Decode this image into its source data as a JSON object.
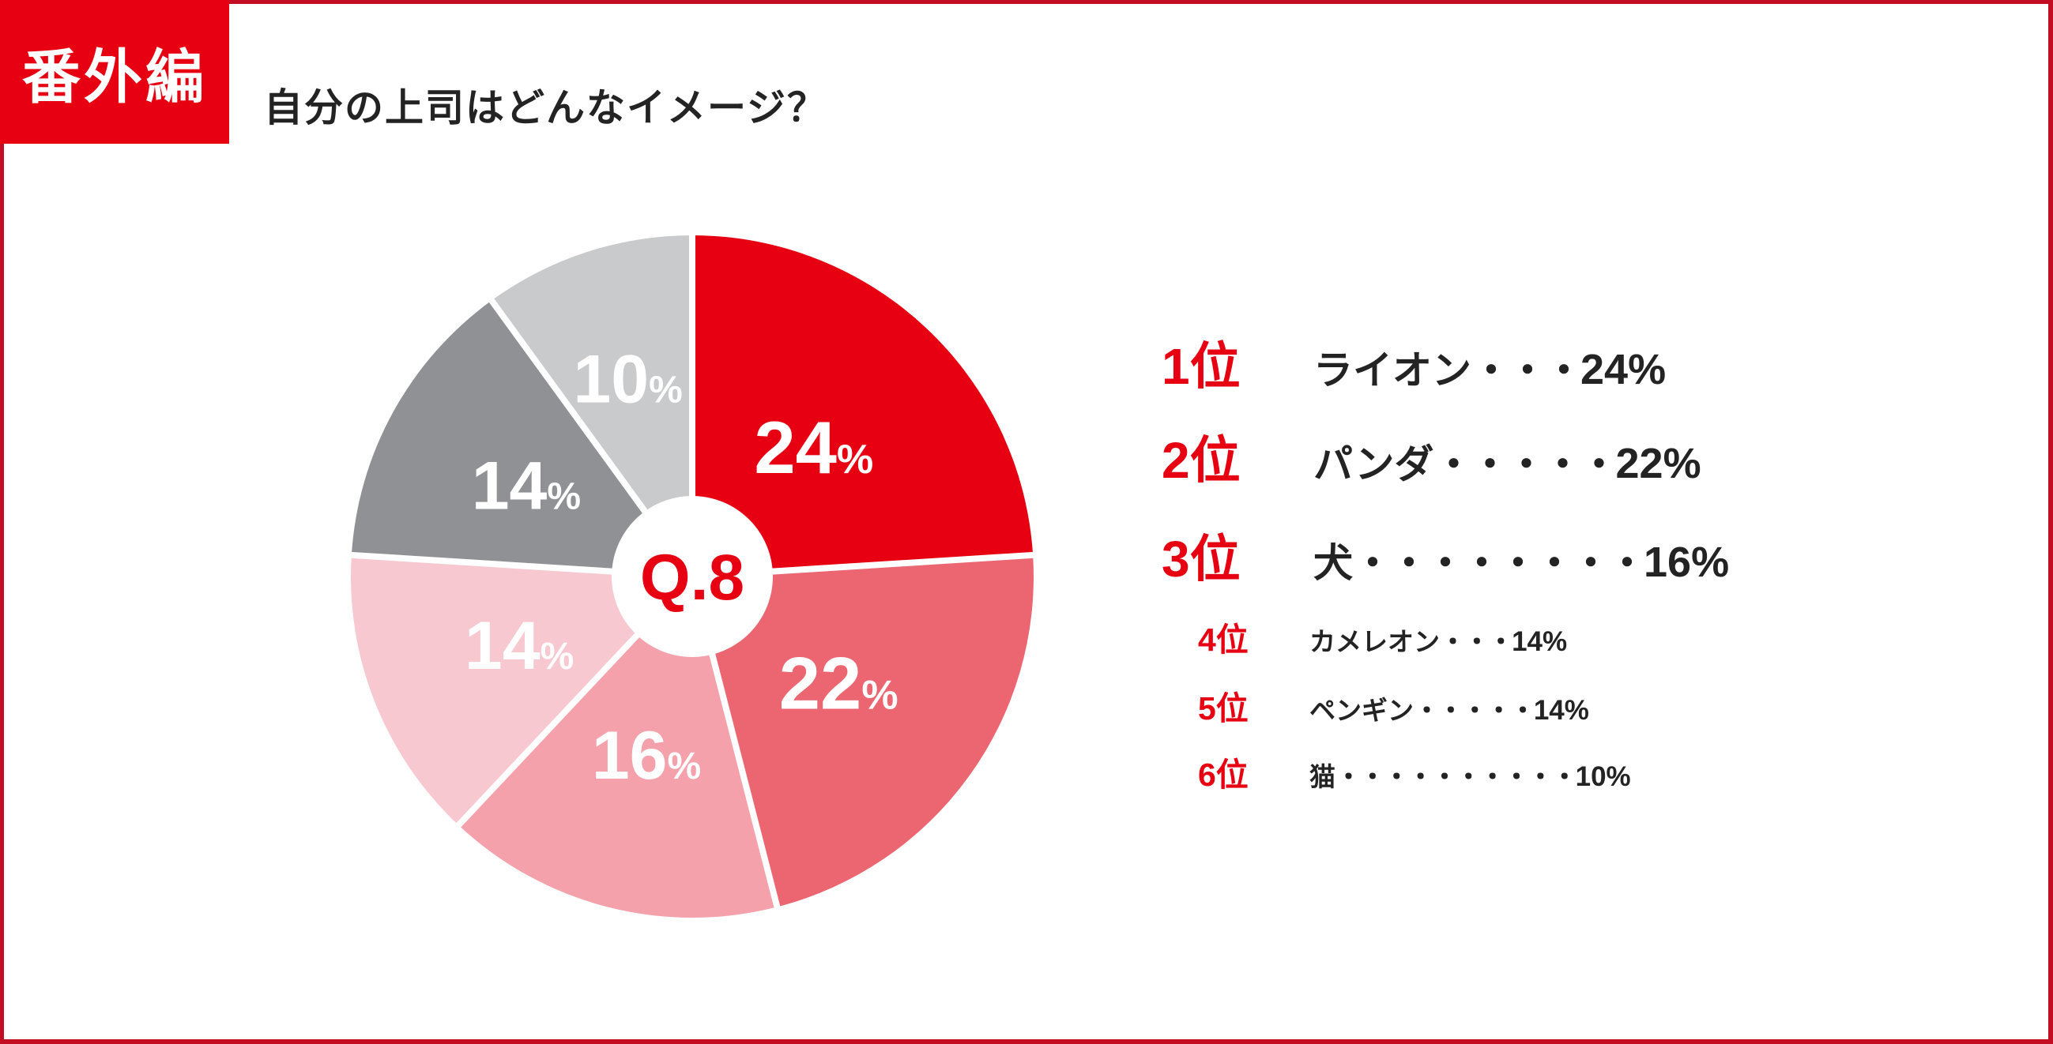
{
  "header": {
    "badge": "番外編",
    "title": "自分の上司はどんなイメージ？"
  },
  "chart_data": {
    "type": "pie",
    "title": "自分の上司はどんなイメージ？",
    "center_label": "Q.8",
    "unit": "%",
    "start_angle_deg": 0,
    "direction": "clockwise",
    "slices": [
      {
        "label": "ライオン",
        "value": 24,
        "display": "24%",
        "color": "#E60012"
      },
      {
        "label": "パンダ",
        "value": 22,
        "display": "22%",
        "color": "#EC6672"
      },
      {
        "label": "犬",
        "value": 16,
        "display": "16%",
        "color": "#F5A1AB"
      },
      {
        "label": "カメレオン",
        "value": 14,
        "display": "14%",
        "color": "#F8C8D1"
      },
      {
        "label": "ペンギン",
        "value": 14,
        "display": "14%",
        "color": "#909194"
      },
      {
        "label": "猫",
        "value": 10,
        "display": "10%",
        "color": "#C9CACB"
      }
    ]
  },
  "ranking": {
    "items": [
      {
        "rank": "1位",
        "name": "ライオン",
        "dots": "・・・",
        "value": "24%",
        "size": "large"
      },
      {
        "rank": "2位",
        "name": "パンダ",
        "dots": "・・・・・",
        "value": "22%",
        "size": "large"
      },
      {
        "rank": "3位",
        "name": "犬",
        "dots": "・・・・・・・・",
        "value": "16%",
        "size": "large"
      },
      {
        "rank": "4位",
        "name": "カメレオン",
        "dots": "・・・",
        "value": "14%",
        "size": "small"
      },
      {
        "rank": "5位",
        "name": "ペンギン",
        "dots": "・・・・・",
        "value": "14%",
        "size": "small"
      },
      {
        "rank": "6位",
        "name": "猫",
        "dots": "・・・・・・・・・・",
        "value": "10%",
        "size": "small"
      }
    ]
  },
  "colors": {
    "accent": "#E60012",
    "frame": "#C30D23",
    "text": "#232323",
    "label_on_slice": "#FFFFFF",
    "pie_separator": "#FFFFFF"
  }
}
